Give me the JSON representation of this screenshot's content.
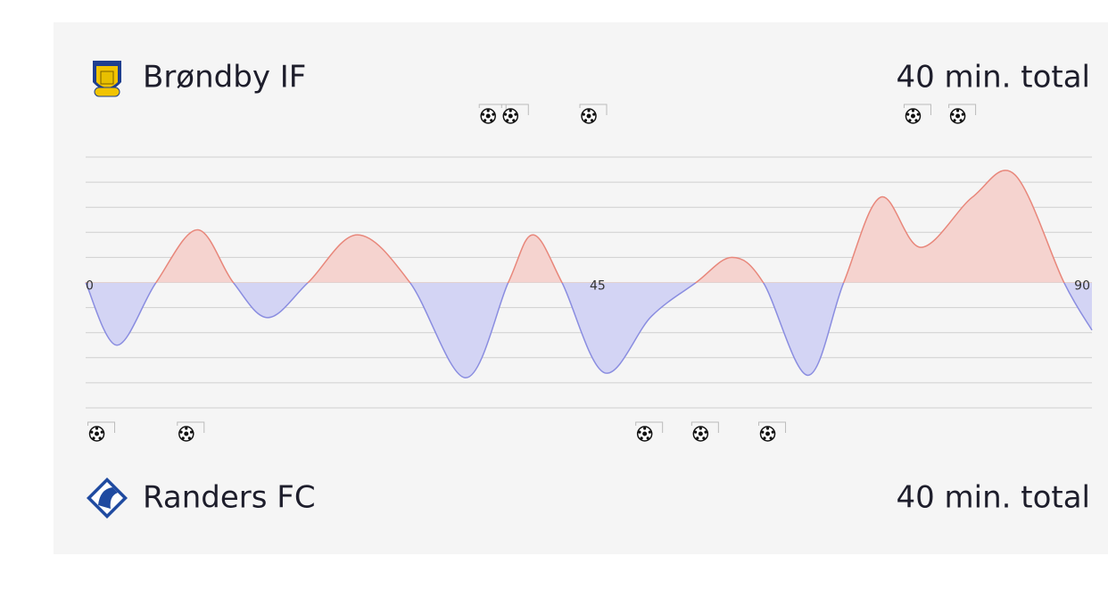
{
  "chart_data": {
    "type": "momentum",
    "teams": [
      {
        "name": "Brøndby IF",
        "total": "40 min. total",
        "side": "top",
        "goals": [
          36,
          38,
          45,
          74,
          78
        ]
      },
      {
        "name": "Randers FC",
        "total": "40 min. total",
        "side": "bottom",
        "goals": [
          1,
          9,
          50,
          55,
          61
        ]
      }
    ],
    "x": [
      0,
      2.8,
      6.3,
      10,
      13.2,
      16.3,
      19.9,
      24.3,
      29,
      34,
      37.8,
      40,
      42.6,
      46.4,
      50.6,
      54.6,
      57.8,
      60.6,
      64.6,
      67.8,
      71.1,
      74.7,
      79.3,
      83.1,
      87.5,
      90
    ],
    "values": [
      0,
      -2.5,
      0,
      2.1,
      0,
      -1.4,
      0,
      1.9,
      0,
      -3.8,
      0,
      1.9,
      0,
      -3.6,
      -1.35,
      0,
      1.0,
      0,
      -3.7,
      0,
      3.4,
      1.4,
      3.4,
      4.3,
      0,
      -1.9
    ],
    "xlim": [
      0,
      90
    ],
    "xticks": [
      0,
      45,
      90
    ],
    "ylim": [
      -5,
      5
    ],
    "yticks": [
      -5,
      -4,
      -3,
      -2,
      -1,
      0,
      1,
      2,
      3,
      4,
      5
    ],
    "grid": true,
    "positive_color": "#e8877b",
    "positive_fill": "#f5d3cf",
    "negative_color": "#8a8de0",
    "negative_fill": "#d3d4f4"
  }
}
